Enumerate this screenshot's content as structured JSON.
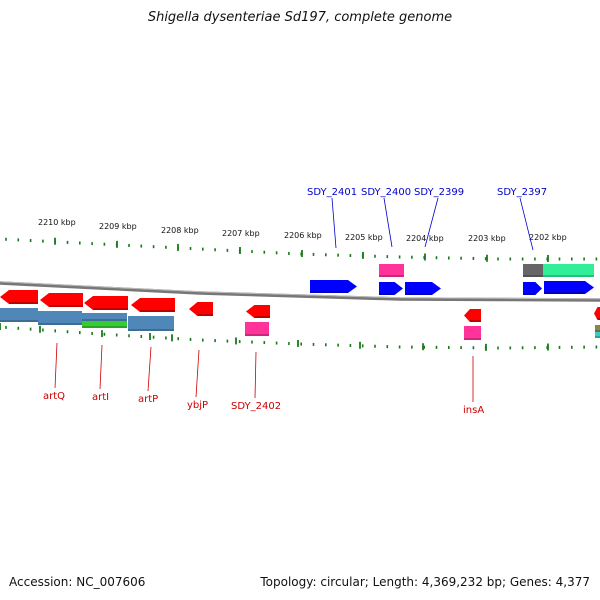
{
  "title": "Shigella dysenteriae Sd197, complete genome",
  "accession": "Accession: NC_007606",
  "summary": "Topology: circular; Length: 4,369,232 bp; Genes: 4,377",
  "colors": {
    "forward_gene": "#0000ff",
    "reverse_gene": "#ff0000",
    "pink_feature": "#ff3399",
    "green_feature": "#33ee99",
    "gray_feature": "#666666",
    "blue_gray_feature": "#4f87b8",
    "lime_feature": "#33cc33",
    "tick": "#1a7a1a",
    "backbone": "#777777",
    "forward_label": "#0000cc",
    "reverse_label": "#cc0000"
  },
  "scale_labels": [
    "2210 kbp",
    "2209 kbp",
    "2208 kbp",
    "2207 kbp",
    "2206 kbp",
    "2205 kbp",
    "2204 kbp",
    "2203 kbp",
    "2202 kbp"
  ],
  "forward_gene_labels": [
    "SDY_2401",
    "SDY_2400",
    "SDY_2399",
    "SDY_2397"
  ],
  "reverse_gene_labels": [
    "artQ",
    "artI",
    "artP",
    "ybjP",
    "SDY_2402",
    "insA"
  ]
}
